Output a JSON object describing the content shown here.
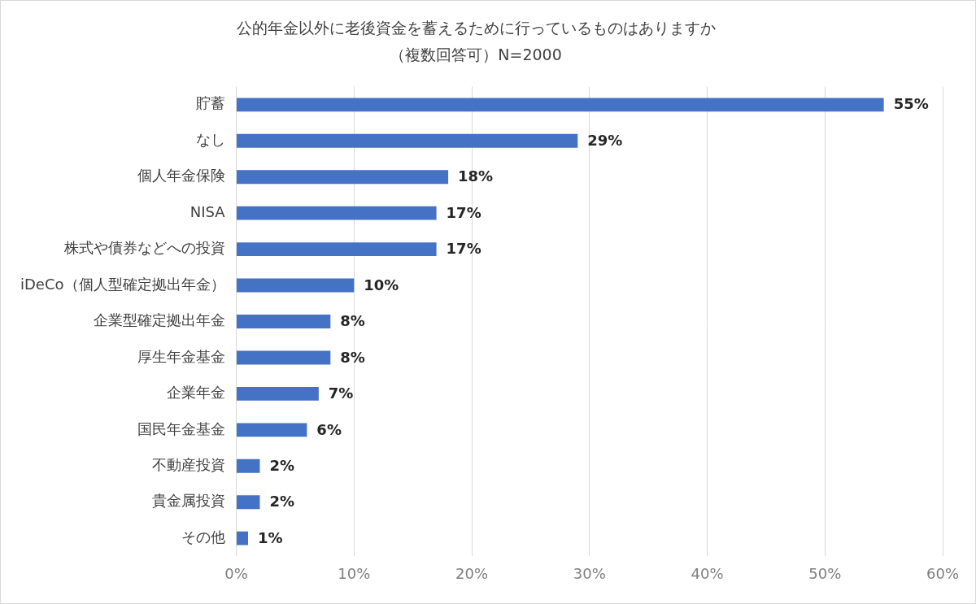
{
  "chart_data": {
    "type": "bar",
    "orientation": "horizontal",
    "title": "公的年金以外に老後資金を蓄えるために行っているものはありますか",
    "subtitle": "（複数回答可）N=2000",
    "categories": [
      "貯蓄",
      "なし",
      "個人年金保険",
      "NISA",
      "株式や債券などへの投資",
      "iDeCo（個人型確定拠出年金）",
      "企業型確定拠出年金",
      "厚生年金基金",
      "企業年金",
      "国民年金基金",
      "不動産投資",
      "貴金属投資",
      "その他"
    ],
    "values": [
      55,
      29,
      18,
      17,
      17,
      10,
      8,
      8,
      7,
      6,
      2,
      2,
      1
    ],
    "value_labels": [
      "55%",
      "29%",
      "18%",
      "17%",
      "17%",
      "10%",
      "8%",
      "8%",
      "7%",
      "6%",
      "2%",
      "2%",
      "1%"
    ],
    "color": "#4472c4",
    "xlim": [
      0,
      60
    ],
    "xticks": [
      {
        "value": 0,
        "label": "0%"
      },
      {
        "value": 10,
        "label": "10%"
      },
      {
        "value": 20,
        "label": "20%"
      },
      {
        "value": 30,
        "label": "30%"
      },
      {
        "value": 40,
        "label": "40%"
      },
      {
        "value": 50,
        "label": "50%"
      },
      {
        "value": 60,
        "label": "60%"
      }
    ],
    "grid": true,
    "data_labels": true
  }
}
